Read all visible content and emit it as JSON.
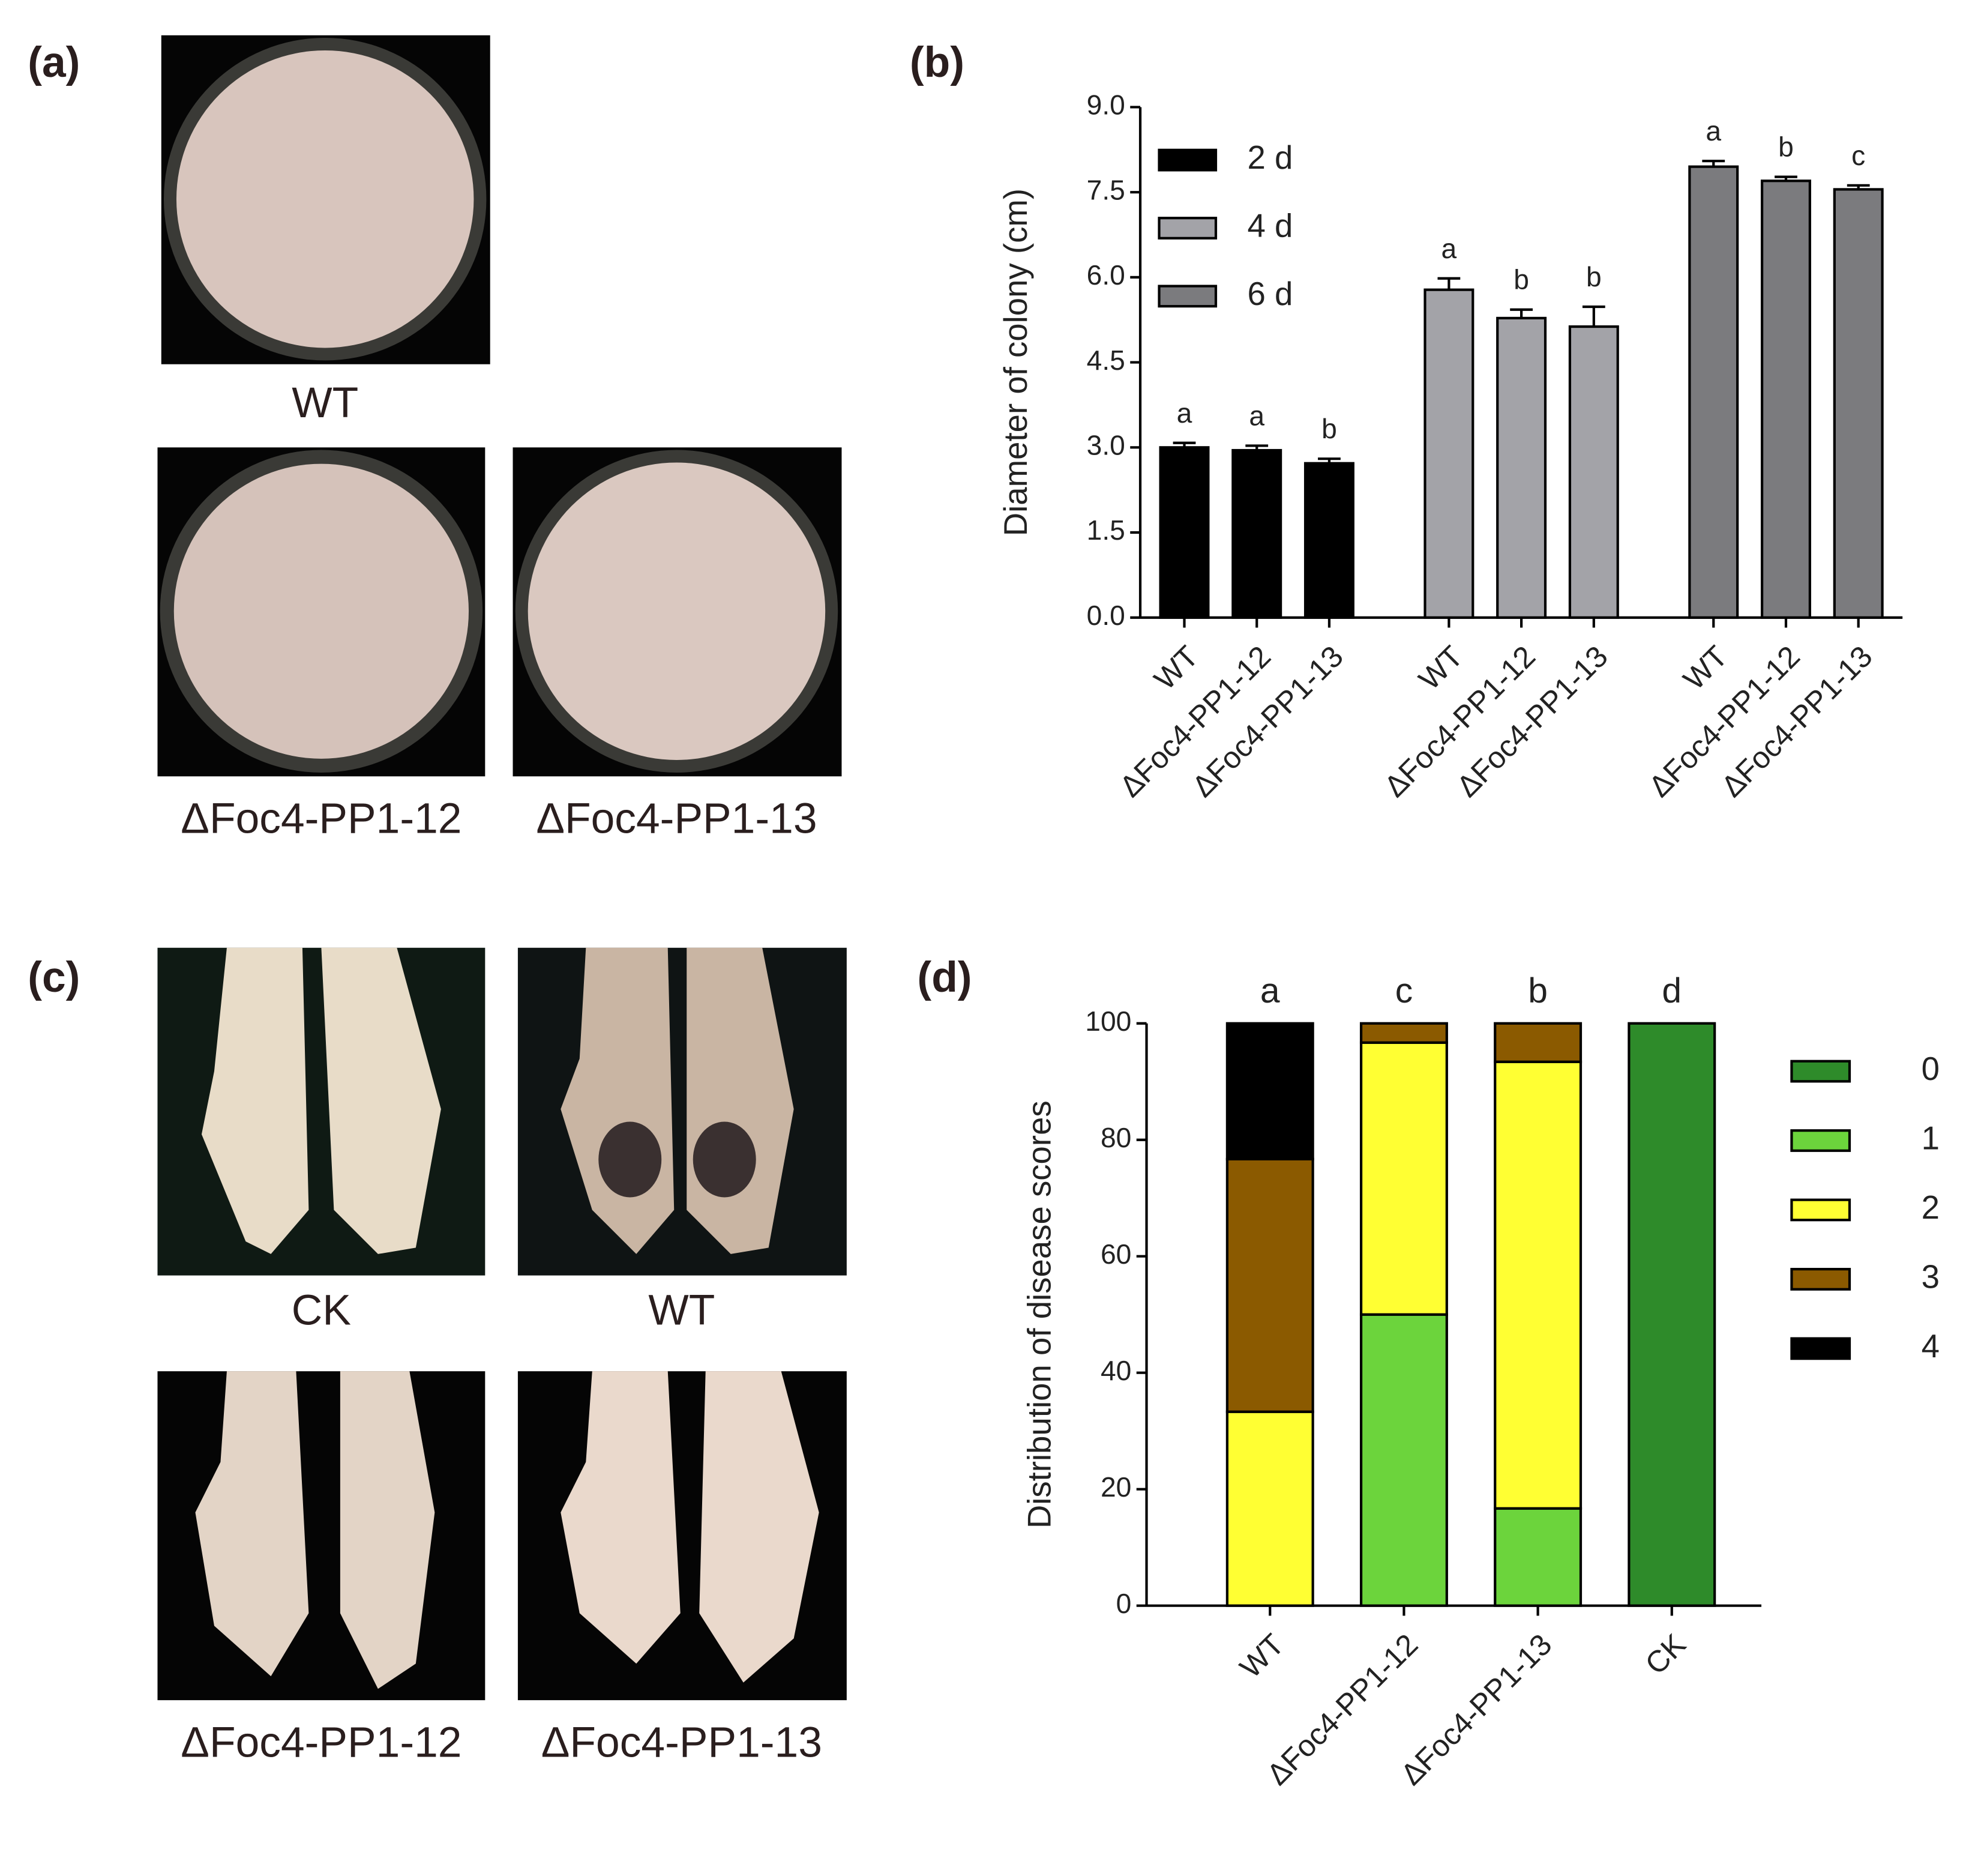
{
  "panels": {
    "a": "(a)",
    "b": "(b)",
    "c": "(c)",
    "d": "(d)"
  },
  "photos_a": [
    "WT",
    "ΔFoc4-PP1-12",
    "ΔFoc4-PP1-13"
  ],
  "photos_c": [
    "CK",
    "WT",
    "ΔFoc4-PP1-12",
    "ΔFoc4-PP1-13"
  ],
  "chart_data": [
    {
      "type": "bar",
      "ylabel": "Diameter of colony (cm)",
      "categories": [
        "WT",
        "ΔFoc4-PP1-12",
        "ΔFoc4-PP1-13"
      ],
      "series": [
        {
          "name": "2 d",
          "color": "#000000",
          "values": [
            3.0,
            2.95,
            2.72
          ],
          "errors": [
            0.08,
            0.08,
            0.08
          ],
          "letters": [
            "a",
            "a",
            "b"
          ]
        },
        {
          "name": "4 d",
          "color": "#a3a3a8",
          "values": [
            5.78,
            5.28,
            5.13
          ],
          "errors": [
            0.2,
            0.15,
            0.35
          ],
          "letters": [
            "a",
            "b",
            "b"
          ]
        },
        {
          "name": "6 d",
          "color": "#7b7b7e",
          "values": [
            7.95,
            7.7,
            7.55
          ],
          "errors": [
            0.1,
            0.07,
            0.07
          ],
          "letters": [
            "a",
            "b",
            "c"
          ]
        }
      ],
      "ylim": [
        0,
        9
      ],
      "yticks": [
        {
          "value": 0,
          "label": "0.0"
        },
        {
          "value": 1.5,
          "label": "1.5"
        },
        {
          "value": 3,
          "label": "3.0"
        },
        {
          "value": 4.5,
          "label": "4.5"
        },
        {
          "value": 6,
          "label": "6.0"
        },
        {
          "value": 7.5,
          "label": "7.5"
        },
        {
          "value": 9,
          "label": "9.0"
        }
      ]
    },
    {
      "type": "stacked_bar",
      "ylabel": "Distribution of disease scores",
      "categories": [
        "WT",
        "ΔFoc4-PP1-12",
        "ΔFoc4-PP1-13",
        "CK"
      ],
      "letters": [
        "a",
        "c",
        "b",
        "d"
      ],
      "series": [
        {
          "name": "0",
          "color": "#2e8b2a",
          "values": [
            0,
            0,
            0,
            100
          ]
        },
        {
          "name": "1",
          "color": "#6cd43c",
          "values": [
            0,
            50,
            16.7,
            0
          ]
        },
        {
          "name": "2",
          "color": "#ffff33",
          "values": [
            33.3,
            46.7,
            76.7,
            0
          ]
        },
        {
          "name": "3",
          "color": "#8b5a00",
          "values": [
            43.4,
            3.3,
            6.6,
            0
          ]
        },
        {
          "name": "4",
          "color": "#000000",
          "values": [
            23.3,
            0,
            0,
            0
          ]
        }
      ],
      "ylim": [
        0,
        100
      ],
      "yticks": [
        0,
        20,
        40,
        60,
        80,
        100
      ]
    }
  ]
}
